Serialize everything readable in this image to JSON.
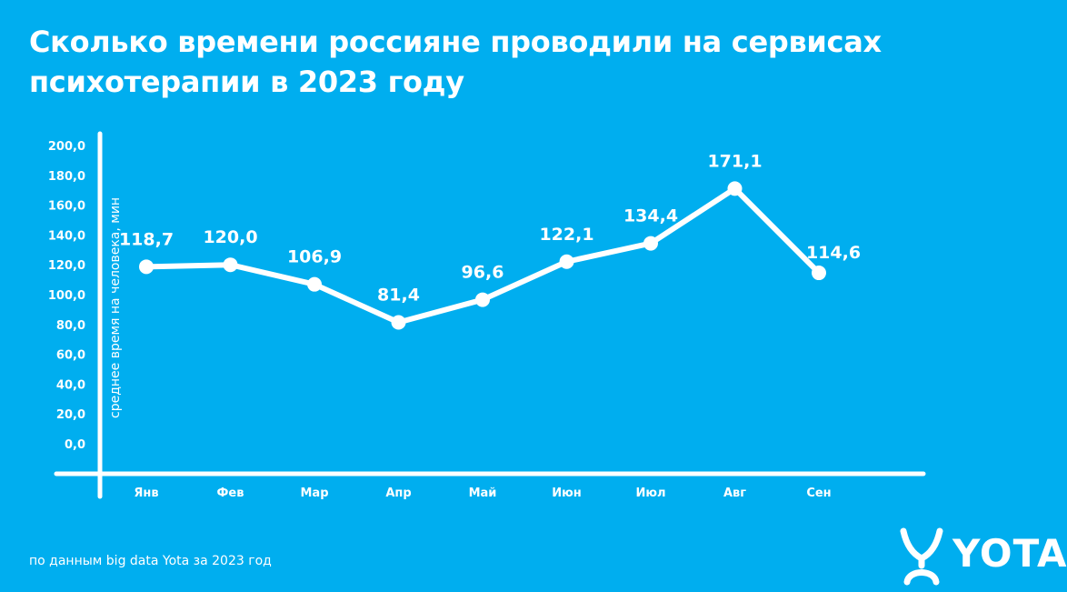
{
  "title_line1": "Сколько времени россияне проводили на сервисах",
  "title_line2": "психотерапии в 2023 году",
  "footnote": "по данным big data Yota за 2023 год",
  "brand": "YOTA",
  "colors": {
    "background": "#00AEEF",
    "foreground": "#FFFFFF"
  },
  "chart_data": {
    "type": "line",
    "ylabel": "среднее время на человека, мин",
    "xlabel": "",
    "ylim": [
      0,
      200
    ],
    "y_ticks": [
      "0,0",
      "20,0",
      "40,0",
      "60,0",
      "80,0",
      "100,0",
      "120,0",
      "140,0",
      "160,0",
      "180,0",
      "200,0"
    ],
    "categories": [
      "Янв",
      "Фев",
      "Мар",
      "Апр",
      "Май",
      "Июн",
      "Июл",
      "Авг",
      "Сен"
    ],
    "values": [
      118.7,
      120.0,
      106.9,
      81.4,
      96.6,
      122.1,
      134.4,
      171.1,
      114.6
    ],
    "data_labels": [
      "118,7",
      "120,0",
      "106,9",
      "81,4",
      "96,6",
      "122,1",
      "134,4",
      "171,1",
      "114,6"
    ],
    "grid": false
  }
}
